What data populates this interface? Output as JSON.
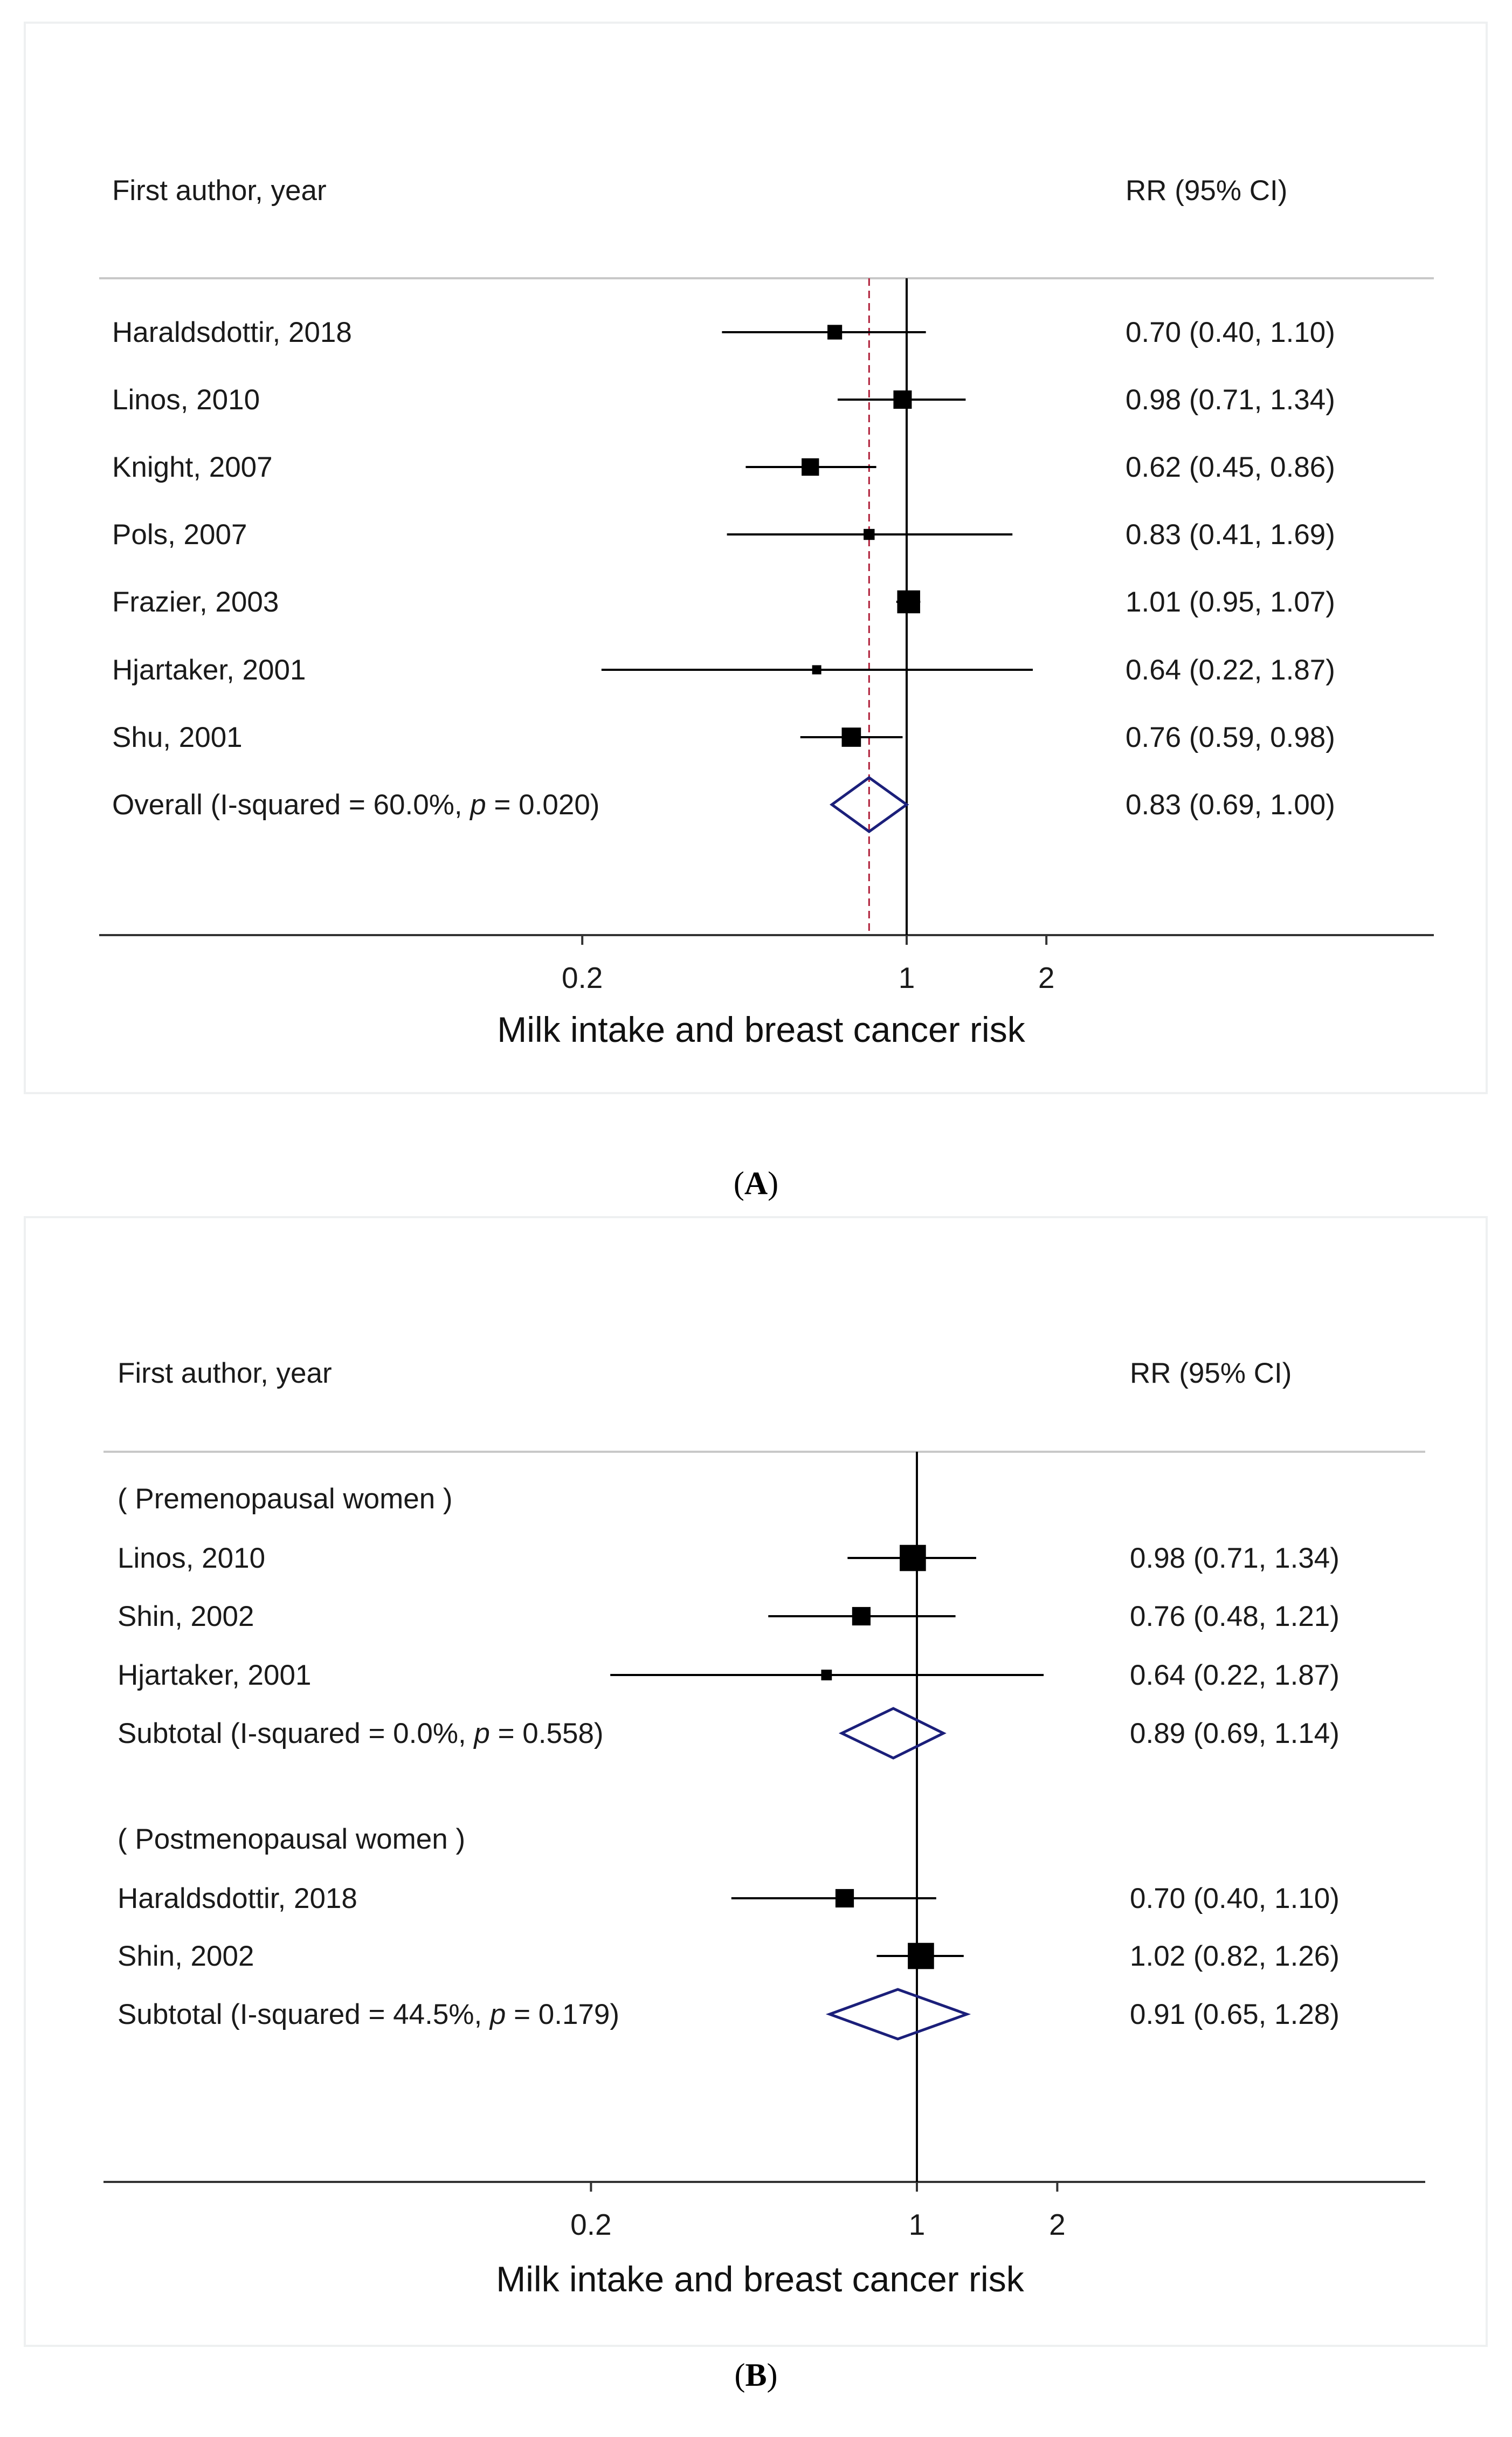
{
  "captions": [
    "A",
    "B"
  ],
  "colors": {
    "diamond": "#1b1f7a",
    "null_line": "#000000",
    "overall_line": "#b0203a"
  },
  "chart_data": [
    {
      "type": "forest",
      "panel": "A",
      "header_left": "First author, year",
      "header_right": "RR (95% CI)",
      "xlabel": "Milk intake and breast cancer risk",
      "x_scale": "log",
      "xticks": [
        0.2,
        1,
        2
      ],
      "xtick_labels": [
        "0.2",
        "1",
        "2"
      ],
      "overall_reference_line": 0.83,
      "rows": [
        {
          "kind": "study",
          "label": "Haraldsdottir, 2018",
          "rr": 0.7,
          "lo": 0.4,
          "hi": 1.1,
          "text": "0.70 (0.40, 1.10)",
          "weight": 0.8
        },
        {
          "kind": "study",
          "label": "Linos, 2010",
          "rr": 0.98,
          "lo": 0.71,
          "hi": 1.34,
          "text": "0.98 (0.71, 1.34)",
          "weight": 1.0
        },
        {
          "kind": "study",
          "label": "Knight, 2007",
          "rr": 0.62,
          "lo": 0.45,
          "hi": 0.86,
          "text": "0.62 (0.45, 0.86)",
          "weight": 0.95
        },
        {
          "kind": "study",
          "label": "Pols, 2007",
          "rr": 0.83,
          "lo": 0.41,
          "hi": 1.69,
          "text": "0.83 (0.41, 1.69)",
          "weight": 0.6
        },
        {
          "kind": "study",
          "label": "Frazier, 2003",
          "rr": 1.01,
          "lo": 0.95,
          "hi": 1.07,
          "text": "1.01 (0.95, 1.07)",
          "weight": 1.25
        },
        {
          "kind": "study",
          "label": "Hjartaker, 2001",
          "rr": 0.64,
          "lo": 0.22,
          "hi": 1.87,
          "text": "0.64 (0.22, 1.87)",
          "weight": 0.5
        },
        {
          "kind": "study",
          "label": "Shu, 2001",
          "rr": 0.76,
          "lo": 0.59,
          "hi": 0.98,
          "text": "0.76 (0.59, 0.98)",
          "weight": 1.05
        },
        {
          "kind": "pooled",
          "label_prefix": "Overall  (I-squared = 60.0%, ",
          "p_symbol": "p",
          "label_suffix": " = 0.020)",
          "rr": 0.83,
          "lo": 0.69,
          "hi": 1.0,
          "text": "0.83 (0.69, 1.00)"
        }
      ]
    },
    {
      "type": "forest",
      "panel": "B",
      "header_left": "First author, year",
      "header_right": "RR (95% CI)",
      "xlabel": "Milk intake and breast cancer risk",
      "x_scale": "log",
      "xticks": [
        0.2,
        1,
        2
      ],
      "xtick_labels": [
        "0.2",
        "1",
        "2"
      ],
      "rows": [
        {
          "kind": "group",
          "label": "( Premenopausal women )"
        },
        {
          "kind": "study",
          "label": "Linos, 2010",
          "rr": 0.98,
          "lo": 0.71,
          "hi": 1.34,
          "text": "0.98 (0.71, 1.34)",
          "weight": 1.35
        },
        {
          "kind": "study",
          "label": "Shin, 2002",
          "rr": 0.76,
          "lo": 0.48,
          "hi": 1.21,
          "text": "0.76 (0.48, 1.21)",
          "weight": 0.95
        },
        {
          "kind": "study",
          "label": "Hjartaker, 2001",
          "rr": 0.64,
          "lo": 0.22,
          "hi": 1.87,
          "text": "0.64 (0.22, 1.87)",
          "weight": 0.55
        },
        {
          "kind": "pooled",
          "label_prefix": "Subtotal  (I-squared = 0.0%, ",
          "p_symbol": "p",
          "label_suffix": " = 0.558)",
          "rr": 0.89,
          "lo": 0.69,
          "hi": 1.14,
          "text": "0.89 (0.69, 1.14)"
        },
        {
          "kind": "group",
          "label": "( Postmenopausal women )"
        },
        {
          "kind": "study",
          "label": "Haraldsdottir, 2018",
          "rr": 0.7,
          "lo": 0.4,
          "hi": 1.1,
          "text": "0.70 (0.40, 1.10)",
          "weight": 0.95
        },
        {
          "kind": "study",
          "label": "Shin, 2002",
          "rr": 1.02,
          "lo": 0.82,
          "hi": 1.26,
          "text": "1.02 (0.82, 1.26)",
          "weight": 1.35
        },
        {
          "kind": "pooled",
          "label_prefix": "Subtotal  (I-squared = 44.5%, ",
          "p_symbol": "p",
          "label_suffix": " = 0.179)",
          "rr": 0.91,
          "lo": 0.65,
          "hi": 1.28,
          "text": "0.91 (0.65, 1.28)"
        }
      ]
    }
  ]
}
